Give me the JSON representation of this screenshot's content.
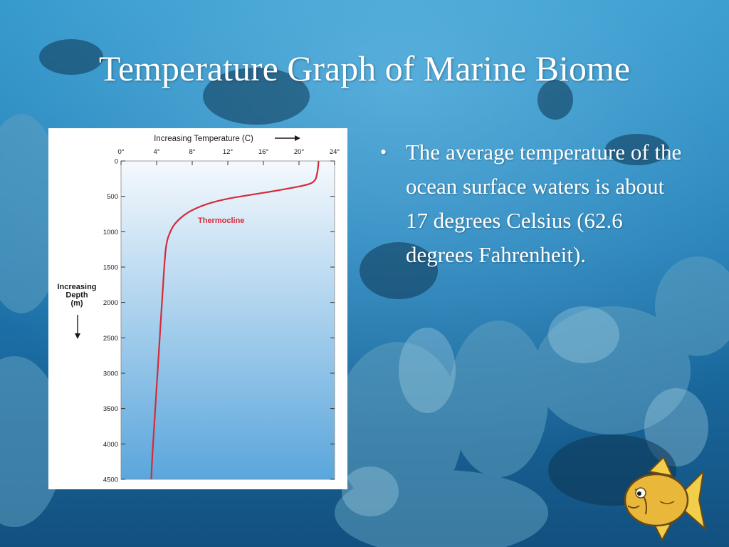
{
  "slide": {
    "title": "Temperature Graph of Marine Biome",
    "bullet": "The average temperature of the ocean surface waters is about 17 degrees Celsius (62.6 degrees Fahrenheit).",
    "bullet_symbol": "•"
  },
  "decor": {
    "background": "underwater-coral-reef-photo",
    "corner": "cartoon-fish-icon"
  },
  "chart_data": {
    "type": "line",
    "title": "Increasing Temperature (C)",
    "ylabel_lines": [
      "Increasing",
      "Depth",
      "(m)"
    ],
    "xlim": [
      0,
      24
    ],
    "ylim": [
      0,
      4500
    ],
    "y_inverted": true,
    "x_ticks": [
      0,
      4,
      8,
      12,
      16,
      20,
      24
    ],
    "x_tick_labels": [
      "0°",
      "4°",
      "8°",
      "12°",
      "16°",
      "20°",
      "24°"
    ],
    "y_ticks": [
      0,
      500,
      1000,
      1500,
      2000,
      2500,
      3000,
      3500,
      4000,
      4500
    ],
    "y_tick_labels": [
      "0",
      "500",
      "1000",
      "1500",
      "2000",
      "2500",
      "3000",
      "3500",
      "4000",
      "4500"
    ],
    "annotation": "Thermocline",
    "series": [
      {
        "color": "#d42b3a",
        "points": [
          [
            22.2,
            0
          ],
          [
            22.1,
            150
          ],
          [
            21.8,
            300
          ],
          [
            20.5,
            350
          ],
          [
            17.5,
            420
          ],
          [
            15,
            470
          ],
          [
            12,
            530
          ],
          [
            9.5,
            610
          ],
          [
            7.5,
            720
          ],
          [
            6.1,
            870
          ],
          [
            5.5,
            1000
          ],
          [
            5.1,
            1150
          ],
          [
            4.9,
            1400
          ],
          [
            4.6,
            2000
          ],
          [
            4.3,
            2600
          ],
          [
            4.0,
            3200
          ],
          [
            3.7,
            3800
          ],
          [
            3.5,
            4200
          ],
          [
            3.4,
            4500
          ]
        ]
      }
    ],
    "colors": {
      "plot_top": "#f5f9fd",
      "plot_bottom": "#5aa6dc",
      "line": "#d42b3a",
      "annotation": "#d42b3a"
    }
  }
}
